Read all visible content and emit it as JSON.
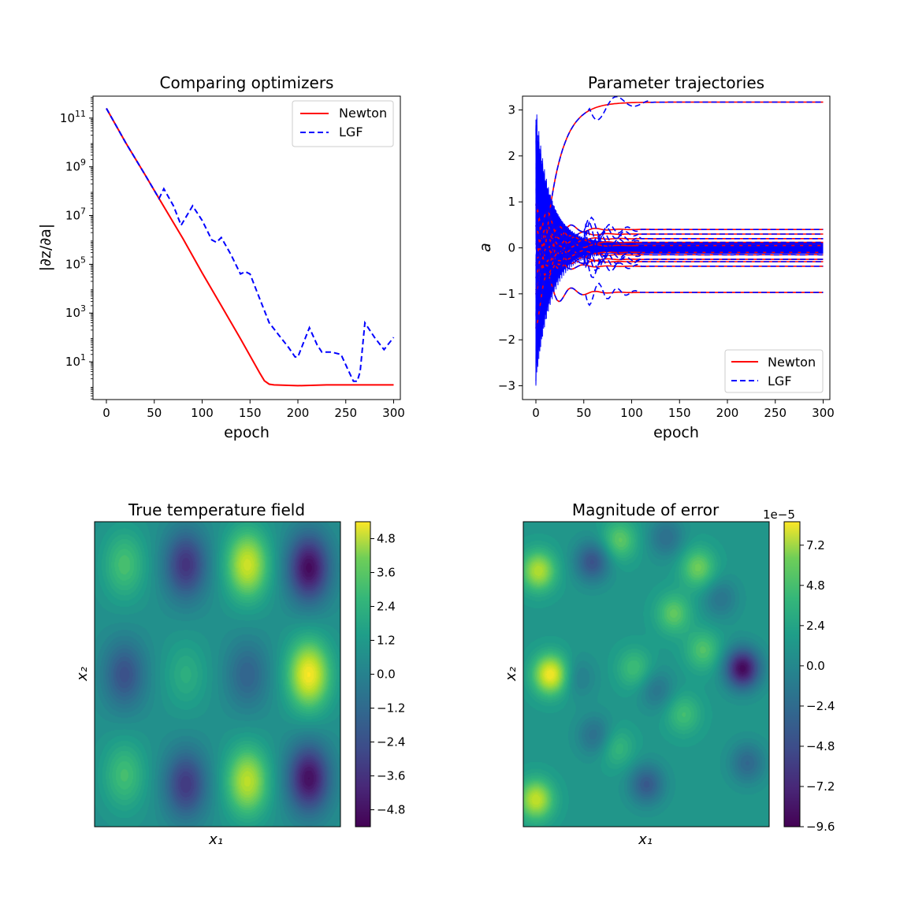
{
  "chart_data": [
    {
      "type": "line",
      "title": "Comparing optimizers",
      "xlabel": "epoch",
      "ylabel": "|∂z/∂a|",
      "yscale": "log",
      "xlim": [
        -14,
        307
      ],
      "ylim_log10": [
        -0.55,
        11.9
      ],
      "xticks": [
        0,
        50,
        100,
        150,
        200,
        250,
        300
      ],
      "yticks_log10": [
        1,
        3,
        5,
        7,
        9,
        11
      ],
      "legend": "top-right",
      "series": [
        {
          "name": "Newton",
          "color": "#ff0000",
          "style": "solid",
          "x": [
            0,
            20,
            40,
            55,
            80,
            100,
            120,
            140,
            160,
            165,
            170,
            175,
            200,
            230,
            260,
            300
          ],
          "log10y": [
            11.4,
            10.0,
            8.7,
            7.7,
            6.05,
            4.65,
            3.3,
            1.95,
            0.55,
            0.22,
            0.08,
            0.05,
            0.02,
            0.05,
            0.05,
            0.05
          ]
        },
        {
          "name": "LGF",
          "color": "#0000ff",
          "style": "dashed",
          "x": [
            0,
            20,
            40,
            55,
            60,
            70,
            78,
            84,
            90,
            100,
            110,
            115,
            120,
            130,
            140,
            145,
            150,
            160,
            170,
            180,
            190,
            197,
            200,
            205,
            212,
            220,
            225,
            235,
            245,
            252,
            258,
            262,
            265,
            270,
            280,
            290,
            300
          ],
          "log10y": [
            11.4,
            10.0,
            8.7,
            7.7,
            8.1,
            7.4,
            6.6,
            7.0,
            7.4,
            6.8,
            6.0,
            5.9,
            6.1,
            5.4,
            4.6,
            4.7,
            4.6,
            3.6,
            2.6,
            2.1,
            1.6,
            1.2,
            1.2,
            1.7,
            2.4,
            1.7,
            1.4,
            1.4,
            1.3,
            0.7,
            0.2,
            0.2,
            0.6,
            2.6,
            2.0,
            1.5,
            2.0
          ]
        }
      ]
    },
    {
      "type": "line",
      "title": "Parameter trajectories",
      "xlabel": "epoch",
      "ylabel": "a",
      "xlim": [
        -14,
        307
      ],
      "ylim": [
        -3.3,
        3.3
      ],
      "xticks": [
        0,
        50,
        100,
        150,
        200,
        250,
        300
      ],
      "yticks": [
        -3,
        -2,
        -1,
        0,
        1,
        2,
        3
      ],
      "legend": "bottom-right",
      "series": [
        {
          "name": "Newton",
          "color": "#ff0000",
          "style": "solid",
          "final_values": [
            3.17,
            0.4,
            0.3,
            0.2,
            0.12,
            0.05,
            -0.1,
            -0.15,
            -0.25,
            -0.3,
            -0.4,
            -0.97
          ]
        },
        {
          "name": "LGF",
          "color": "#0000ff",
          "style": "dashed",
          "final_values": [
            3.17,
            0.4,
            0.3,
            0.2,
            0.12,
            0.05,
            -0.1,
            -0.15,
            -0.25,
            -0.3,
            -0.4,
            -0.97
          ]
        }
      ],
      "envelope": {
        "color": "#0000ff",
        "start": [
          -3.0,
          3.0
        ],
        "converge_epoch": 45
      }
    },
    {
      "type": "heatmap",
      "title": "True temperature field",
      "xlabel": "x_1",
      "ylabel": "x_2",
      "colormap": "viridis",
      "colorbar_range": [
        -5.4,
        5.4
      ],
      "colorbar_ticks": [
        "4.8",
        "3.6",
        "2.4",
        "1.2",
        "0.0",
        "−1.2",
        "−2.4",
        "−3.6",
        "−4.8"
      ],
      "colorbar_tick_values": [
        4.8,
        3.6,
        2.4,
        1.2,
        0.0,
        -1.2,
        -2.4,
        -3.6,
        -4.8
      ],
      "blobs": [
        {
          "cx": 0.12,
          "cy": 0.14,
          "v": 2.2
        },
        {
          "cx": 0.37,
          "cy": 0.14,
          "v": -3.8
        },
        {
          "cx": 0.62,
          "cy": 0.14,
          "v": 4.6
        },
        {
          "cx": 0.87,
          "cy": 0.15,
          "v": -5.1
        },
        {
          "cx": 0.12,
          "cy": 0.5,
          "v": -2.7
        },
        {
          "cx": 0.37,
          "cy": 0.5,
          "v": 1.3
        },
        {
          "cx": 0.62,
          "cy": 0.5,
          "v": -2.0
        },
        {
          "cx": 0.87,
          "cy": 0.5,
          "v": 5.3
        },
        {
          "cx": 0.12,
          "cy": 0.83,
          "v": 2.1
        },
        {
          "cx": 0.37,
          "cy": 0.86,
          "v": -3.6
        },
        {
          "cx": 0.62,
          "cy": 0.85,
          "v": 4.3
        },
        {
          "cx": 0.87,
          "cy": 0.84,
          "v": -5.0
        }
      ]
    },
    {
      "type": "heatmap",
      "title": "Magnitude of error",
      "xlabel": "x_1",
      "ylabel": "x_2",
      "colormap": "viridis",
      "colorbar_multiplier": "1e−5",
      "colorbar_range": [
        -9.6,
        8.6
      ],
      "colorbar_ticks": [
        "7.2",
        "4.8",
        "2.4",
        "0.0",
        "−2.4",
        "−4.8",
        "−7.2",
        "−9.6"
      ],
      "colorbar_tick_values": [
        7.2,
        4.8,
        2.4,
        0.0,
        -2.4,
        -4.8,
        -7.2,
        -9.6
      ],
      "blobs": [
        {
          "cx": 0.06,
          "cy": 0.16,
          "v": 6.5
        },
        {
          "cx": 0.11,
          "cy": 0.5,
          "v": 8.5
        },
        {
          "cx": 0.05,
          "cy": 0.91,
          "v": 7.0
        },
        {
          "cx": 0.39,
          "cy": 0.06,
          "v": 4.0
        },
        {
          "cx": 0.71,
          "cy": 0.15,
          "v": 4.5
        },
        {
          "cx": 0.61,
          "cy": 0.3,
          "v": 4.0
        },
        {
          "cx": 0.45,
          "cy": 0.48,
          "v": 3.0
        },
        {
          "cx": 0.73,
          "cy": 0.42,
          "v": 3.5
        },
        {
          "cx": 0.65,
          "cy": 0.63,
          "v": 3.0
        },
        {
          "cx": 0.28,
          "cy": 0.13,
          "v": -5.0
        },
        {
          "cx": 0.22,
          "cy": 0.51,
          "v": -2.0
        },
        {
          "cx": 0.29,
          "cy": 0.7,
          "v": -3.0
        },
        {
          "cx": 0.54,
          "cy": 0.55,
          "v": -2.5
        },
        {
          "cx": 0.89,
          "cy": 0.48,
          "v": -9.2
        },
        {
          "cx": 0.5,
          "cy": 0.86,
          "v": -4.5
        },
        {
          "cx": 0.91,
          "cy": 0.79,
          "v": -3.5
        },
        {
          "cx": 0.58,
          "cy": 0.05,
          "v": -3.0
        },
        {
          "cx": 0.38,
          "cy": 0.74,
          "v": 2.5
        },
        {
          "cx": 0.8,
          "cy": 0.25,
          "v": -2.5
        }
      ]
    }
  ]
}
